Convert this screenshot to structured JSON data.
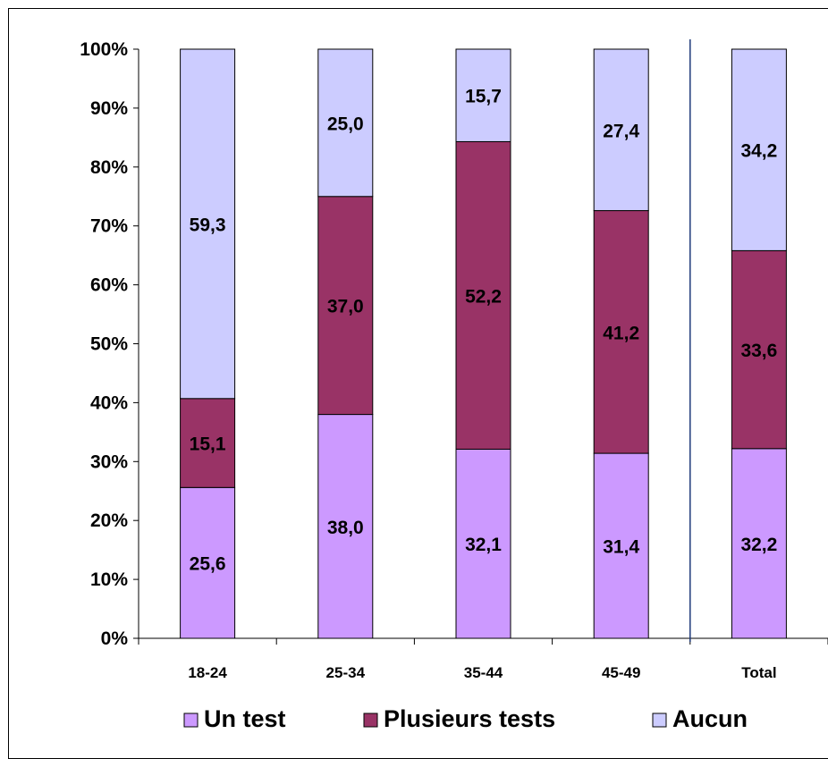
{
  "chart_data": {
    "type": "bar",
    "stacked": true,
    "normalized_percent": true,
    "categories": [
      "18-24",
      "25-34",
      "35-44",
      "45-49",
      "Total"
    ],
    "series": [
      {
        "name": "Un test",
        "values": [
          25.6,
          38.0,
          32.1,
          31.4,
          32.2
        ],
        "labels": [
          "25,6",
          "38,0",
          "32,1",
          "31,4",
          "32,2"
        ],
        "color": "#CC99FF"
      },
      {
        "name": "Plusieurs tests",
        "values": [
          15.1,
          37.0,
          52.2,
          41.2,
          33.6
        ],
        "labels": [
          "15,1",
          "37,0",
          "52,2",
          "41,2",
          "33,6"
        ],
        "color": "#993366"
      },
      {
        "name": "Aucun",
        "values": [
          59.3,
          25.0,
          15.7,
          27.4,
          34.2
        ],
        "labels": [
          "59,3",
          "25,0",
          "15,7",
          "27,4",
          "34,2"
        ],
        "color": "#CCCCFF"
      }
    ],
    "ylim": [
      0,
      100
    ],
    "y_ticks": [
      "0%",
      "10%",
      "20%",
      "30%",
      "40%",
      "50%",
      "60%",
      "70%",
      "80%",
      "90%",
      "100%"
    ],
    "separator_before": "Total",
    "separator_color": "#1F3A7A",
    "grid": false,
    "legend_position": "bottom",
    "title": "",
    "xlabel": "",
    "ylabel": ""
  }
}
